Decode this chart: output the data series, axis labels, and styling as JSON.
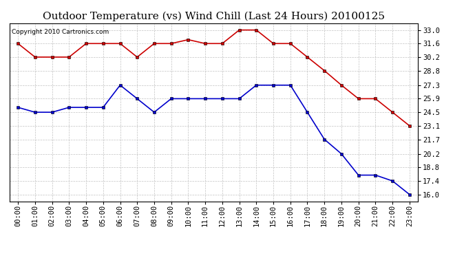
{
  "title": "Outdoor Temperature (vs) Wind Chill (Last 24 Hours) 20100125",
  "copyright": "Copyright 2010 Cartronics.com",
  "hours": [
    "00:00",
    "01:00",
    "02:00",
    "03:00",
    "04:00",
    "05:00",
    "06:00",
    "07:00",
    "08:00",
    "09:00",
    "10:00",
    "11:00",
    "12:00",
    "13:00",
    "14:00",
    "15:00",
    "16:00",
    "17:00",
    "18:00",
    "19:00",
    "20:00",
    "21:00",
    "22:00",
    "23:00"
  ],
  "temp_red": [
    31.6,
    30.2,
    30.2,
    30.2,
    31.6,
    31.6,
    31.6,
    30.2,
    31.6,
    31.6,
    32.0,
    31.6,
    31.6,
    33.0,
    33.0,
    31.6,
    31.6,
    30.2,
    28.8,
    27.3,
    25.9,
    25.9,
    24.5,
    23.1
  ],
  "wind_chill_blue": [
    25.0,
    24.5,
    24.5,
    25.0,
    25.0,
    25.0,
    27.3,
    25.9,
    24.5,
    25.9,
    25.9,
    25.9,
    25.9,
    25.9,
    27.3,
    27.3,
    27.3,
    24.5,
    21.7,
    20.2,
    18.0,
    18.0,
    17.4,
    16.0
  ],
  "ylim_min": 15.3,
  "ylim_max": 33.7,
  "yticks": [
    16.0,
    17.4,
    18.8,
    20.2,
    21.7,
    23.1,
    24.5,
    25.9,
    27.3,
    28.8,
    30.2,
    31.6,
    33.0
  ],
  "red_color": "#cc0000",
  "blue_color": "#0000cc",
  "grid_color": "#bbbbbb",
  "bg_color": "#ffffff",
  "title_fontsize": 11,
  "tick_fontsize": 7.5,
  "copyright_fontsize": 6.5
}
